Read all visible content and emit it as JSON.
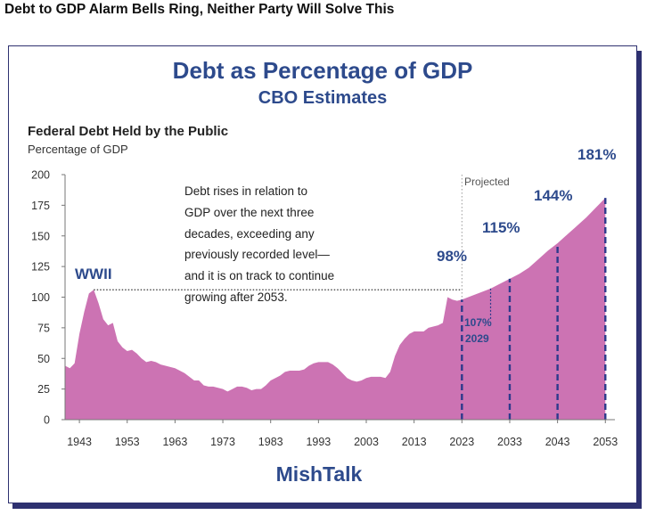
{
  "headline": "Debt to GDP Alarm Bells Ring, Neither Party Will Solve This",
  "chart_data": {
    "type": "area",
    "title": "Debt as Percentage of GDP",
    "subtitle": "CBO Estimates",
    "chart_title": "Federal Debt Held by the Public",
    "ylabel": "Percentage of GDP",
    "xlabel": "",
    "ylim": [
      0,
      200
    ],
    "xlim": [
      1940,
      2055
    ],
    "y_ticks": [
      "0",
      "25",
      "50",
      "75",
      "100",
      "125",
      "150",
      "175",
      "200"
    ],
    "x_ticks": [
      "1943",
      "1953",
      "1963",
      "1973",
      "1983",
      "1993",
      "2003",
      "2013",
      "2023",
      "2033",
      "2043",
      "2053"
    ],
    "historical": {
      "x": [
        1940,
        1941,
        1942,
        1943,
        1944,
        1945,
        1946,
        1947,
        1948,
        1949,
        1950,
        1951,
        1952,
        1953,
        1954,
        1955,
        1956,
        1957,
        1958,
        1959,
        1960,
        1961,
        1962,
        1963,
        1964,
        1965,
        1966,
        1967,
        1968,
        1969,
        1970,
        1971,
        1972,
        1973,
        1974,
        1975,
        1976,
        1977,
        1978,
        1979,
        1980,
        1981,
        1982,
        1983,
        1984,
        1985,
        1986,
        1987,
        1988,
        1989,
        1990,
        1991,
        1992,
        1993,
        1994,
        1995,
        1996,
        1997,
        1998,
        1999,
        2000,
        2001,
        2002,
        2003,
        2004,
        2005,
        2006,
        2007,
        2008,
        2009,
        2010,
        2011,
        2012,
        2013,
        2014,
        2015,
        2016,
        2017,
        2018,
        2019,
        2020,
        2021,
        2022,
        2023
      ],
      "y": [
        44,
        42,
        46,
        70,
        88,
        103,
        106,
        95,
        82,
        77,
        79,
        64,
        59,
        56,
        57,
        54,
        50,
        47,
        48,
        47,
        45,
        44,
        43,
        42,
        40,
        38,
        35,
        32,
        32,
        28,
        27,
        27,
        26,
        25,
        23,
        25,
        27,
        27,
        26,
        24,
        25,
        25,
        28,
        32,
        34,
        36,
        39,
        40,
        40,
        40,
        41,
        44,
        46,
        47,
        47,
        47,
        45,
        42,
        38,
        34,
        32,
        31,
        32,
        34,
        35,
        35,
        35,
        34,
        39,
        52,
        61,
        66,
        70,
        72,
        72,
        72,
        75,
        76,
        77,
        79,
        100,
        98,
        97,
        98
      ]
    },
    "projected": {
      "label": "Projected",
      "x": [
        2023,
        2025,
        2027,
        2029,
        2031,
        2033,
        2035,
        2037,
        2039,
        2041,
        2043,
        2045,
        2047,
        2049,
        2051,
        2053
      ],
      "y": [
        98,
        101,
        104,
        107,
        111,
        115,
        119,
        124,
        131,
        138,
        144,
        151,
        158,
        165,
        173,
        181
      ]
    },
    "callouts": [
      {
        "x": 2023,
        "value": 98,
        "label": "98%"
      },
      {
        "x": 2033,
        "value": 115,
        "label": "115%"
      },
      {
        "x": 2043,
        "value": 144,
        "label": "144%"
      },
      {
        "x": 2053,
        "value": 181,
        "label": "181%"
      }
    ],
    "marker_2029": {
      "x": 2029,
      "value": 107,
      "label_value": "107%",
      "label_year": "2029"
    },
    "wwii": {
      "label": "WWII",
      "x": 1946,
      "value": 106
    },
    "annotation_lines": [
      "Debt rises in relation to",
      "GDP over the next three",
      "decades, exceeding any",
      "previously recorded level—",
      "and it is on track to continue",
      "growing after 2053."
    ],
    "colors": {
      "fill": "#cc73b3",
      "accent": "#2d4a8c",
      "dashed": "#2d3a8c"
    }
  },
  "watermark": "MishTalk"
}
